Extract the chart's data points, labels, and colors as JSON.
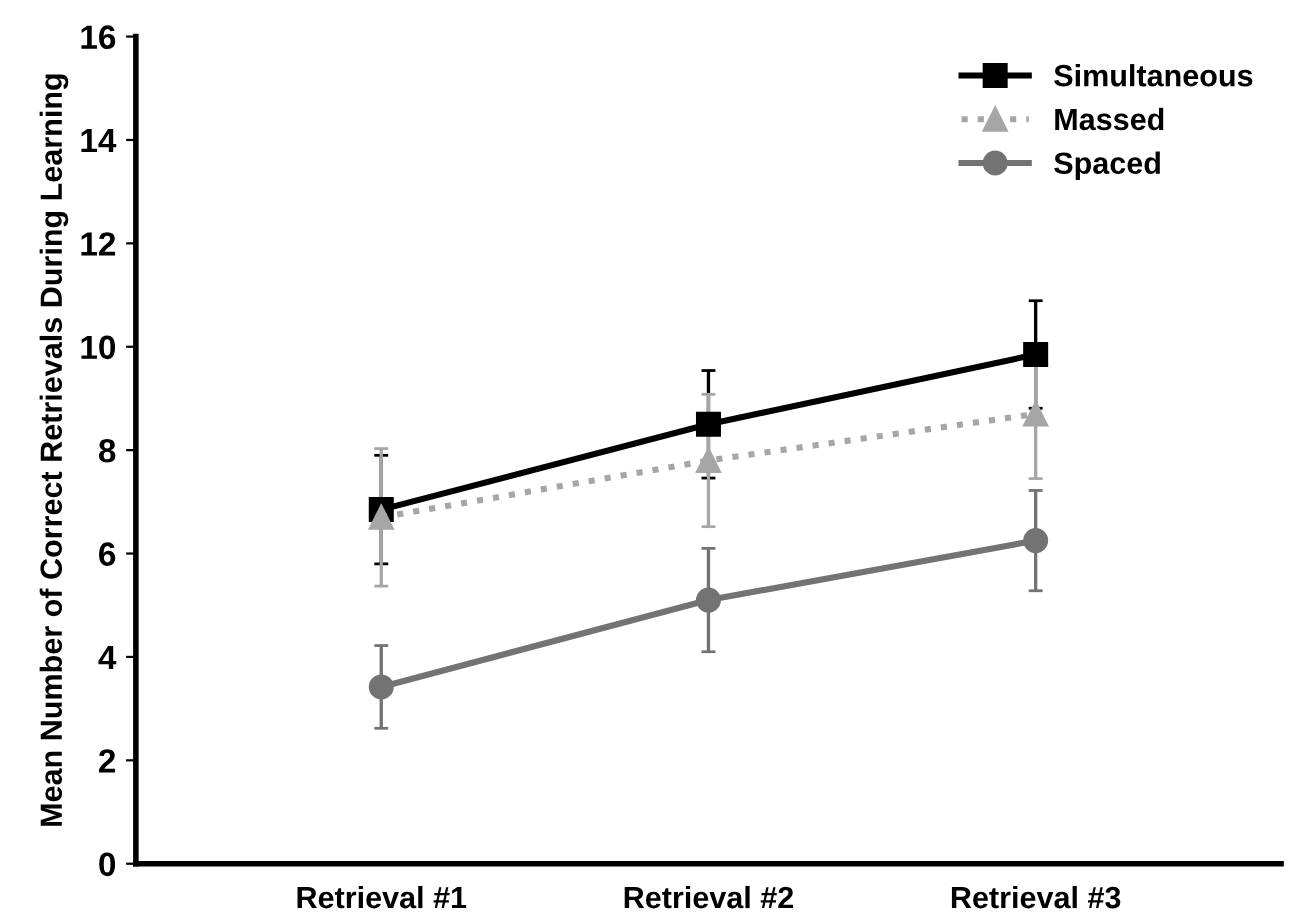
{
  "chart_data": {
    "type": "line",
    "ylabel": "Mean Number of Correct Retrievals During Learning",
    "categories": [
      "Retrieval #1",
      "Retrieval #2",
      "Retrieval #3"
    ],
    "series": [
      {
        "name": "Simultaneous",
        "color": "#000000",
        "values": [
          6.85,
          8.5,
          9.85
        ],
        "errors": [
          1.05,
          1.04,
          1.04
        ],
        "marker": "square",
        "line_style": "solid"
      },
      {
        "name": "Massed",
        "color": "#a6a6a6",
        "values": [
          6.7,
          7.8,
          8.7
        ],
        "errors": [
          1.33,
          1.28,
          1.25
        ],
        "marker": "triangle",
        "line_style": "dotted"
      },
      {
        "name": "Spaced",
        "color": "#737373",
        "values": [
          3.42,
          5.1,
          6.25
        ],
        "errors": [
          0.8,
          1.0,
          0.97
        ],
        "marker": "circle",
        "line_style": "solid"
      }
    ],
    "ylim": [
      0,
      16
    ],
    "yticks": [
      0,
      2,
      4,
      6,
      8,
      10,
      12,
      14,
      16
    ],
    "grid": false,
    "legend": "top right"
  }
}
